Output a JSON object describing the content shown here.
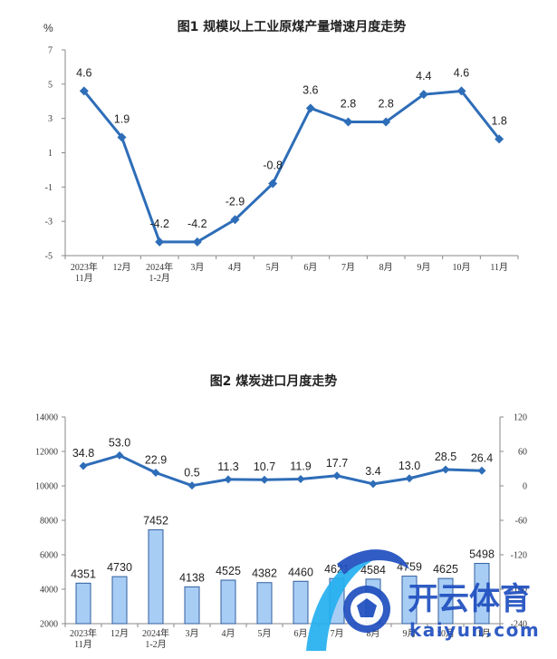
{
  "chart_data": [
    {
      "type": "line",
      "title": "图1  规模以上工业原煤产量增速月度走势",
      "unit": "%",
      "categories": [
        [
          "2023年",
          "11月"
        ],
        [
          "12月"
        ],
        [
          "2024年",
          "1-2月"
        ],
        [
          "3月"
        ],
        [
          "4月"
        ],
        [
          "5月"
        ],
        [
          "6月"
        ],
        [
          "7月"
        ],
        [
          "8月"
        ],
        [
          "9月"
        ],
        [
          "10月"
        ],
        [
          "11月"
        ]
      ],
      "series": [
        {
          "values": [
            4.6,
            1.9,
            -4.2,
            -4.2,
            -2.9,
            -0.8,
            3.6,
            2.8,
            2.8,
            4.4,
            4.6,
            1.8
          ]
        }
      ],
      "data_labels": [
        "4.6",
        "1.9",
        "-4.2",
        "-4.2",
        "-2.9",
        "-0.8",
        "3.6",
        "2.8",
        "2.8",
        "4.4",
        "4.6",
        "1.8"
      ],
      "ylim": [
        -5,
        7
      ],
      "yticks": [
        7,
        5,
        3,
        1,
        -1,
        -3,
        -5
      ],
      "grid": false,
      "colors": {
        "line": "#2e6db8"
      }
    },
    {
      "type": "bar+line",
      "title": "图2  煤炭进口月度走势",
      "categories": [
        [
          "2023年",
          "11月"
        ],
        [
          "12月"
        ],
        [
          "2024年",
          "1-2月"
        ],
        [
          "3月"
        ],
        [
          "4月"
        ],
        [
          "5月"
        ],
        [
          "6月"
        ],
        [
          "7月"
        ],
        [
          "8月"
        ],
        [
          "9月"
        ],
        [
          "10月"
        ],
        [
          "11月"
        ]
      ],
      "bars": {
        "axis": "left",
        "values": [
          4351,
          4730,
          7452,
          4138,
          4525,
          4382,
          4460,
          4621,
          4584,
          4759,
          4625,
          5498
        ],
        "data_labels": [
          "4351",
          "4730",
          "7452",
          "4138",
          "4525",
          "4382",
          "4460",
          "4621",
          "4584",
          "4759",
          "4625",
          "5498"
        ]
      },
      "line": {
        "axis": "right",
        "values": [
          34.8,
          53.0,
          22.9,
          0.5,
          11.3,
          10.7,
          11.9,
          17.7,
          3.4,
          13.0,
          28.5,
          26.4
        ],
        "data_labels": [
          "34.8",
          "53.0",
          "22.9",
          "0.5",
          "11.3",
          "10.7",
          "11.9",
          "17.7",
          "3.4",
          "13.0",
          "28.5",
          "26.4"
        ]
      },
      "ylim_left": [
        2000,
        14000
      ],
      "yticks_left": [
        14000,
        12000,
        10000,
        8000,
        6000,
        4000,
        2000
      ],
      "ylim_right": [
        -240,
        120
      ],
      "yticks_right": [
        120,
        60,
        0,
        -60,
        -120,
        -180,
        -240
      ],
      "grid": false,
      "colors": {
        "bar_fill": "#a8cdf5",
        "bar_stroke": "#2f5e9e",
        "line": "#2e6db8"
      }
    }
  ],
  "watermark": {
    "text": "开云体育",
    "subtext": "kaiyun.com",
    "colors": {
      "main": "#1f4fbf",
      "accent": "#24b0f0"
    }
  }
}
